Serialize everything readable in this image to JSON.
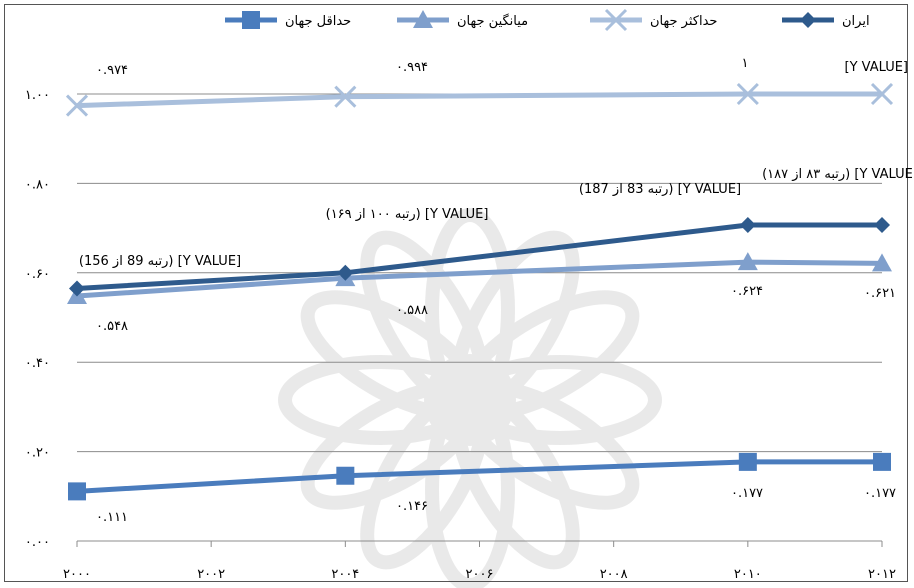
{
  "chart_data": {
    "type": "line",
    "title": "",
    "xlabel": "",
    "ylabel": "",
    "x": [
      2000,
      2004,
      2010,
      2012
    ],
    "x_ticks": [
      2000,
      2002,
      2004,
      2006,
      2008,
      2010,
      2012
    ],
    "x_tick_labels": [
      "۲۰۰۰",
      "۲۰۰۲",
      "۲۰۰۴",
      "۲۰۰۶",
      "۲۰۰۸",
      "۲۰۱۰",
      "۲۰۱۲"
    ],
    "ylim": [
      0,
      1.0
    ],
    "y_ticks": [
      0,
      0.2,
      0.4,
      0.6,
      0.8,
      1.0
    ],
    "y_tick_labels": [
      "۰.۰۰",
      "۰.۲۰",
      "۰.۴۰",
      "۰.۶۰",
      "۰.۸۰",
      "۱.۰۰"
    ],
    "grid": "horizontal",
    "legend_position": "top",
    "series": [
      {
        "name": "ایران",
        "color": "#2e5a8c",
        "marker": "diamond",
        "values": [
          0.565,
          0.6,
          0.707,
          0.707
        ],
        "labels": [
          "[Y VALUE] (رتبه 89 از 156)",
          "[Y VALUE] (رتبه ۱۰۰ از ۱۶۹)",
          "[Y VALUE] (رتبه 83 از 187)",
          "[Y VALUE] (رتبه ۸۳ از ۱۸۷)"
        ]
      },
      {
        "name": "حداکثر جهان",
        "color": "#a9bfdc",
        "marker": "x",
        "values": [
          0.974,
          0.994,
          1.0,
          1.0
        ],
        "labels": [
          "۰.۹۷۴",
          "۰.۹۹۴",
          "۱",
          "[Y VALUE]"
        ]
      },
      {
        "name": "میانگین جهان",
        "color": "#7f9fcc",
        "marker": "triangle",
        "values": [
          0.548,
          0.588,
          0.624,
          0.621
        ],
        "labels": [
          "۰.۵۴۸",
          "۰.۵۸۸",
          "۰.۶۲۴",
          "۰.۶۲۱"
        ]
      },
      {
        "name": "حداقل جهان",
        "color": "#4a7cbd",
        "marker": "square",
        "values": [
          0.111,
          0.146,
          0.177,
          0.177
        ],
        "labels": [
          "۰.۱۱۱",
          "۰.۱۴۶",
          "۰.۱۷۷",
          "۰.۱۷۷"
        ]
      }
    ]
  }
}
